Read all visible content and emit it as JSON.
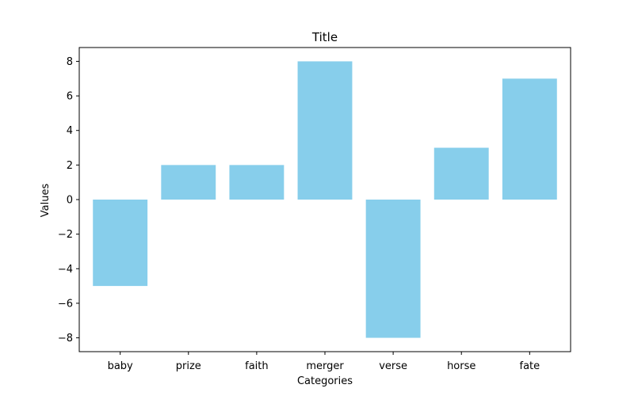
{
  "chart_data": {
    "type": "bar",
    "title": "Title",
    "xlabel": "Categories",
    "ylabel": "Values",
    "categories": [
      "baby",
      "prize",
      "faith",
      "merger",
      "verse",
      "horse",
      "fate"
    ],
    "values": [
      -5,
      2,
      2,
      8,
      -8,
      3,
      7
    ],
    "ylim": [
      -8.8,
      8.8
    ],
    "yticks": [
      -8,
      -6,
      -4,
      -2,
      0,
      2,
      4,
      6,
      8
    ],
    "ytick_labels": [
      "−8",
      "−6",
      "−4",
      "−2",
      "0",
      "2",
      "4",
      "6",
      "8"
    ],
    "bar_color": "#87ceeb",
    "grid": false,
    "legend": "none"
  }
}
